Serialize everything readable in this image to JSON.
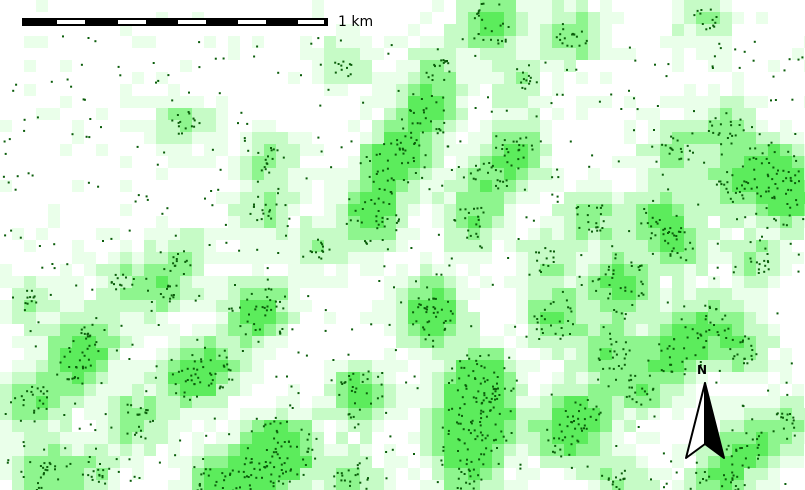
{
  "map": {
    "scale_bar": {
      "label": "1 km",
      "length_value": 1,
      "unit": "km",
      "segments": 5
    },
    "north_arrow": {
      "label": "N",
      "icon": "north-arrow-icon"
    },
    "legend": null,
    "colors": {
      "background": "#ffffff",
      "density_light": "#eaffea",
      "density_medium": "#c6fbc6",
      "density_high": "#8ef58e",
      "density_peak": "#5cec5c",
      "feature_points": "#0b5d0b"
    }
  }
}
